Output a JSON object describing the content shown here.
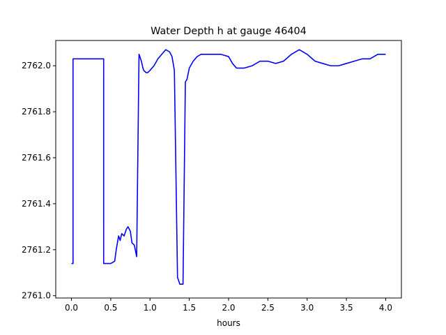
{
  "chart_data": {
    "type": "line",
    "title": "Water Depth h at gauge 46404",
    "xlabel": "hours",
    "ylabel": "",
    "xlim": [
      -0.2,
      4.2
    ],
    "ylim": [
      2760.99,
      2762.11
    ],
    "xticks": [
      0.0,
      0.5,
      1.0,
      1.5,
      2.0,
      2.5,
      3.0,
      3.5,
      4.0
    ],
    "xtick_labels": [
      "0.0",
      "0.5",
      "1.0",
      "1.5",
      "2.0",
      "2.5",
      "3.0",
      "3.5",
      "4.0"
    ],
    "yticks": [
      2761.0,
      2761.2,
      2761.4,
      2761.6,
      2761.8,
      2762.0
    ],
    "ytick_labels": [
      "2761.0",
      "2761.2",
      "2761.4",
      "2761.6",
      "2761.8",
      "2762.0"
    ],
    "grid": false,
    "series": [
      {
        "color": "#0000ff",
        "x": [
          0.0,
          0.02,
          0.02,
          0.03,
          0.2,
          0.41,
          0.41,
          0.5,
          0.55,
          0.57,
          0.6,
          0.62,
          0.64,
          0.67,
          0.7,
          0.72,
          0.75,
          0.77,
          0.8,
          0.83,
          0.86,
          0.89,
          0.89,
          0.91,
          0.92,
          0.95,
          0.97,
          1.0,
          1.05,
          1.1,
          1.15,
          1.2,
          1.25,
          1.28,
          1.31,
          1.35,
          1.38,
          1.38,
          1.42,
          1.45,
          1.47,
          1.47,
          1.5,
          1.55,
          1.6,
          1.65,
          1.7,
          1.8,
          1.9,
          2.0,
          2.05,
          2.1,
          2.15,
          2.2,
          2.3,
          2.4,
          2.5,
          2.6,
          2.7,
          2.8,
          2.9,
          3.0,
          3.1,
          3.2,
          3.3,
          3.4,
          3.5,
          3.6,
          3.7,
          3.8,
          3.9,
          3.97,
          4.0
        ],
        "y": [
          2761.14,
          2761.14,
          2762.03,
          2762.03,
          2762.03,
          2762.03,
          2761.14,
          2761.14,
          2761.15,
          2761.2,
          2761.26,
          2761.24,
          2761.27,
          2761.26,
          2761.29,
          2761.3,
          2761.28,
          2761.23,
          2761.22,
          2761.17,
          2762.05,
          2762.02,
          2762.02,
          2761.99,
          2761.98,
          2761.97,
          2761.97,
          2761.98,
          2762.0,
          2762.03,
          2762.05,
          2762.07,
          2762.06,
          2762.04,
          2761.98,
          2761.08,
          2761.05,
          2761.05,
          2761.05,
          2761.93,
          2761.94,
          2761.94,
          2761.99,
          2762.02,
          2762.04,
          2762.05,
          2762.05,
          2762.05,
          2762.05,
          2762.04,
          2762.01,
          2761.99,
          2761.99,
          2761.99,
          2762.0,
          2762.02,
          2762.02,
          2762.01,
          2762.02,
          2762.05,
          2762.07,
          2762.05,
          2762.02,
          2762.01,
          2762.0,
          2762.0,
          2762.01,
          2762.02,
          2762.03,
          2762.03,
          2762.05,
          2762.05,
          2762.05
        ]
      }
    ]
  }
}
